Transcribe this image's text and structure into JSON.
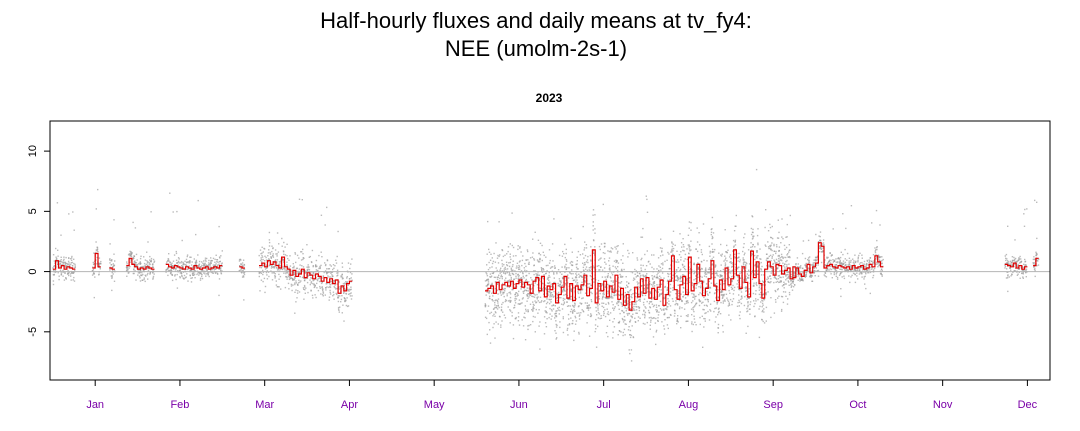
{
  "chart_data": {
    "type": "scatter",
    "title_line1": "Half-hourly fluxes and daily means at tv_fy4:",
    "title_line2": "NEE (umolm-2s-1)",
    "subtitle": "2023",
    "xlabel": "",
    "ylabel": "",
    "xlim": [
      -1,
      353
    ],
    "ylim": [
      -9,
      12.5
    ],
    "yticks": [
      -5,
      0,
      5,
      10
    ],
    "ytick_labels": [
      "-5",
      "0",
      "5",
      "10"
    ],
    "reference_line_y": 0,
    "month_ticks": [
      {
        "label": "Jan",
        "day": 15
      },
      {
        "label": "Feb",
        "day": 45
      },
      {
        "label": "Mar",
        "day": 75
      },
      {
        "label": "Apr",
        "day": 105
      },
      {
        "label": "May",
        "day": 135
      },
      {
        "label": "Jun",
        "day": 165
      },
      {
        "label": "Jul",
        "day": 195
      },
      {
        "label": "Aug",
        "day": 225
      },
      {
        "label": "Sep",
        "day": 255
      },
      {
        "label": "Oct",
        "day": 285
      },
      {
        "label": "Nov",
        "day": 315
      },
      {
        "label": "Dec",
        "day": 345
      }
    ],
    "colors": {
      "points": "#9e9e9e",
      "daily_mean": "#e00000",
      "zero_line": "#b4b4b4",
      "month_labels": "#7a00a8",
      "axis": "#000000"
    },
    "daily_means": {
      "description": "Daily mean NEE (step line) by day of year; null = gap",
      "series": [
        {
          "name": "",
          "segments": [
            {
              "start_day": 0,
              "values": [
                0.2,
                0.9,
                0.3,
                0.5,
                0.2,
                0.4,
                0.3,
                0.2
              ]
            },
            {
              "start_day": 14,
              "values": [
                0.3,
                1.5,
                0.4
              ]
            },
            {
              "start_day": 20,
              "values": [
                0.3,
                0.2
              ]
            },
            {
              "start_day": 26,
              "values": [
                0.5,
                1.1,
                0.6,
                0.4,
                0.2,
                0.3,
                0.2,
                0.4,
                0.3,
                0.2
              ]
            },
            {
              "start_day": 40,
              "values": [
                0.6,
                0.4,
                0.3,
                0.5,
                0.4,
                0.3,
                0.2,
                0.4,
                0.3,
                0.2,
                0.5,
                0.3,
                0.2,
                0.3,
                0.4,
                0.2,
                0.3,
                0.4,
                0.3,
                0.5
              ]
            },
            {
              "start_day": 66,
              "values": [
                0.4,
                0.3
              ]
            },
            {
              "start_day": 73,
              "values": [
                0.5,
                0.7,
                0.4,
                0.9,
                0.6,
                0.8,
                0.5,
                0.3,
                1.2,
                0.4,
                0.2,
                -0.3,
                0.1,
                -0.4,
                -0.2,
                0.2,
                -0.5,
                -0.1,
                -0.3,
                -0.6,
                -0.2,
                -0.4,
                -0.8,
                -0.5,
                -0.9,
                -0.6,
                -1.0,
                -0.7,
                -1.8,
                -1.2,
                -1.6,
                -1.0,
                -0.8
              ]
            }
          ]
        },
        {
          "name": "",
          "segments": [
            {
              "start_day": 153,
              "values": [
                -1.6,
                -1.4,
                -1.2,
                -1.8,
                -0.9,
                -1.5,
                -1.1,
                -0.9,
                -1.2,
                -0.8,
                -1.4,
                -1.0,
                -0.7,
                -1.3,
                -0.9,
                -1.1,
                -1.8,
                -0.8,
                -0.5,
                -1.6,
                -0.4,
                -2.1,
                -1.2,
                -1.5,
                -1.0,
                -2.6,
                -1.9,
                -1.3,
                -0.4,
                -2.2,
                -1.0,
                -2.4,
                -1.2,
                -1.5,
                -1.1,
                -0.3,
                -2.0,
                -1.4,
                1.8,
                -2.6,
                -1.0,
                -1.6,
                -0.8,
                -2.1,
                -1.2,
                -1.7,
                -0.3,
                -2.3,
                -1.4,
                -2.8,
                -1.9,
                -3.2,
                -2.5,
                -1.3,
                -2.1,
                -0.6,
                -1.8,
                -0.5,
                -2.2,
                -1.4,
                -2.3,
                -1.3,
                -0.7,
                -2.8,
                -1.9,
                -0.8,
                1.3,
                -1.5,
                -2.3,
                -1.1,
                -0.4,
                -1.9,
                1.2,
                -1.6,
                -1.0,
                0.6,
                -0.8,
                -2.0,
                -1.4,
                -0.6,
                0.9,
                -1.2,
                -2.4,
                -0.7,
                -1.5,
                0.3,
                -1.1,
                -0.6,
                1.8,
                -0.3,
                -1.4,
                0.4,
                -0.9,
                -2.1,
                1.7,
                -0.5,
                0.8,
                -1.0,
                -2.2,
                0.2,
                0.8,
                0.4,
                -0.3,
                0.6,
                0.5,
                -0.2,
                0.1,
                0.3,
                -0.6,
                0.4
              ]
            },
            {
              "start_day": 262,
              "values": [
                -0.5,
                0.3,
                -0.2,
                -0.4,
                0.1,
                0.6,
                -0.1,
                0.4,
                0.7,
                2.4,
                2.1,
                0.3,
                0.5,
                0.6,
                0.4,
                0.3,
                0.5,
                0.4,
                0.3,
                0.4,
                0.2,
                0.5,
                0.3,
                0.4,
                0.5,
                0.2,
                0.3,
                0.6,
                0.4,
                1.3,
                0.8,
                0.4
              ]
            },
            {
              "start_day": 337,
              "values": [
                0.6,
                0.5,
                0.4,
                0.7,
                0.3,
                0.5,
                0.2,
                0.4
              ]
            },
            {
              "start_day": 347,
              "values": [
                0.5,
                1.1
              ]
            }
          ]
        }
      ]
    }
  }
}
